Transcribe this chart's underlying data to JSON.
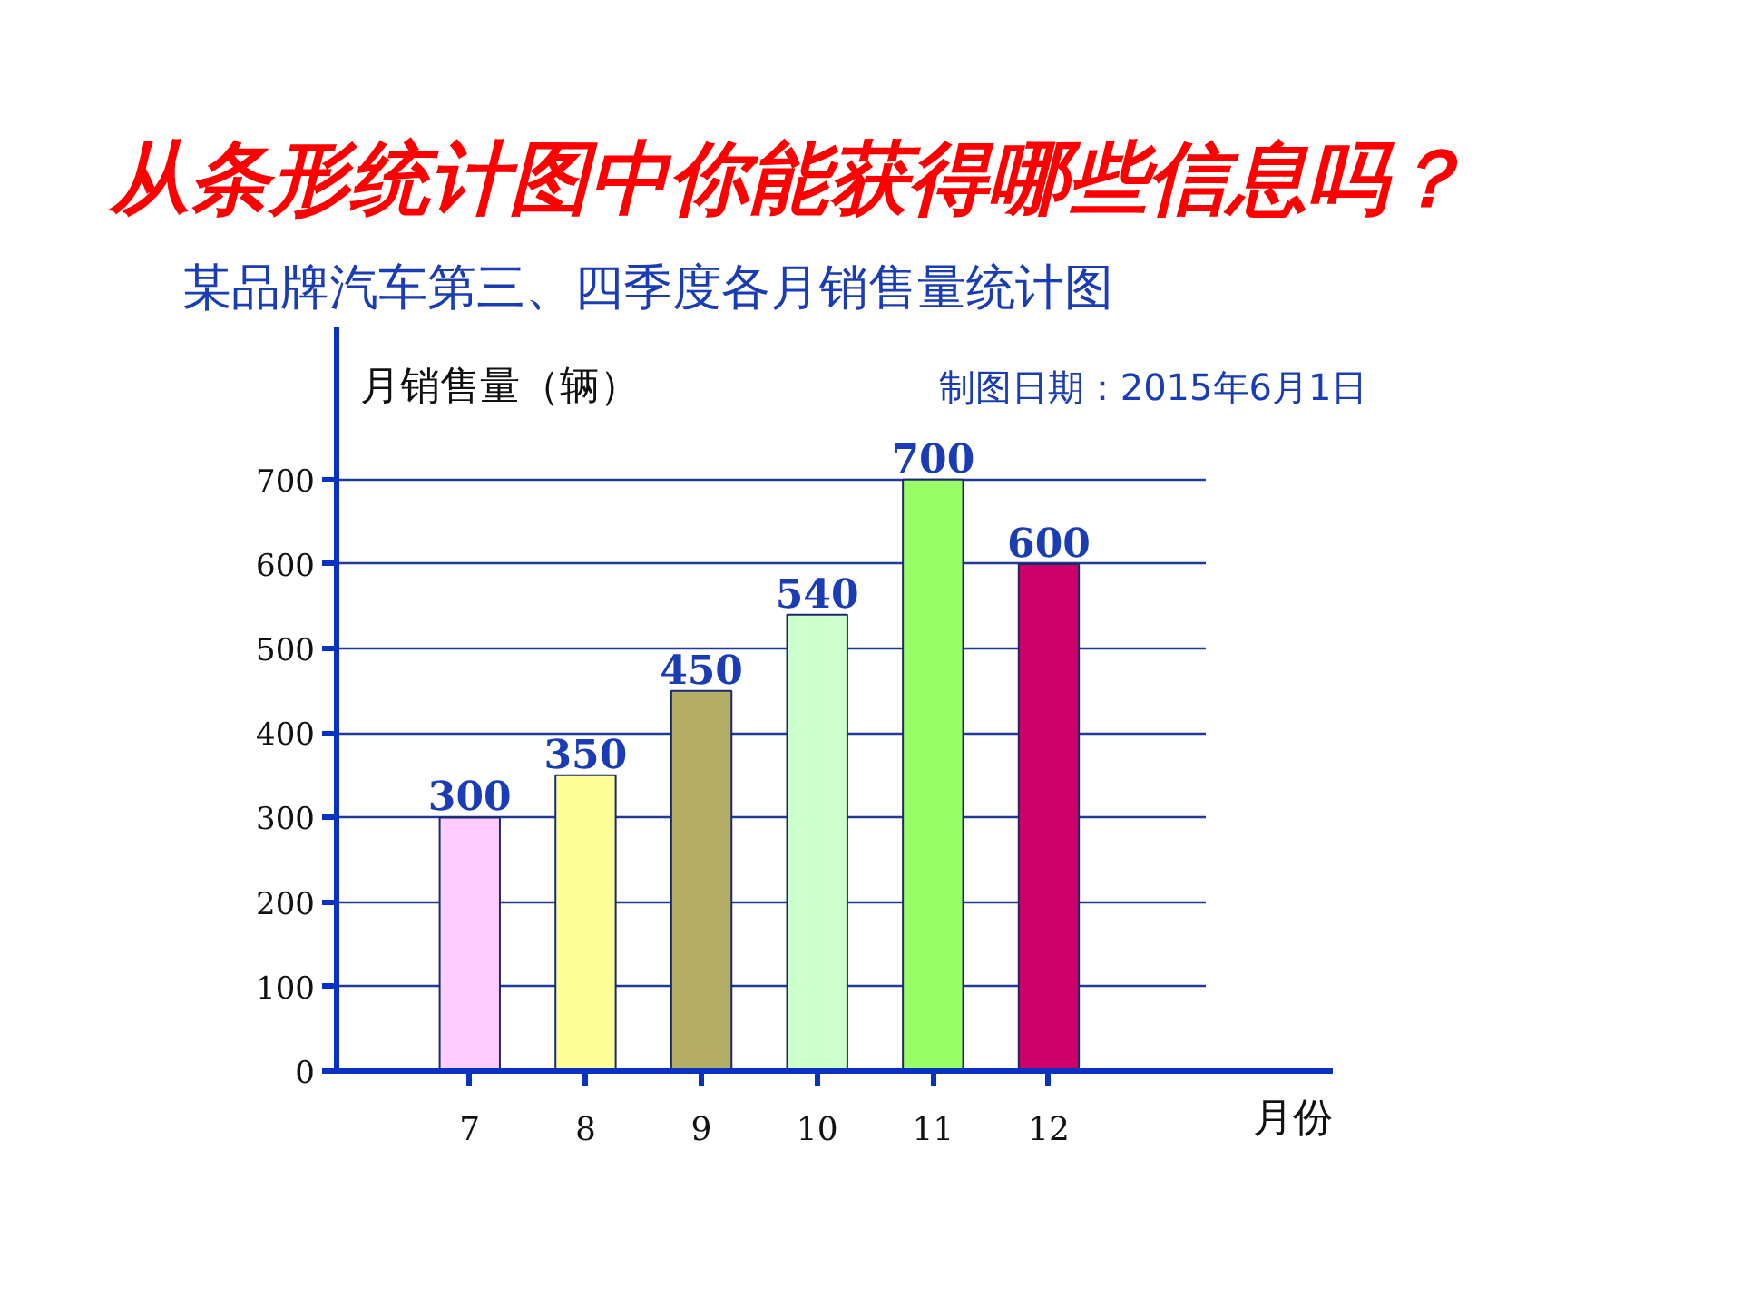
{
  "chart_data": {
    "type": "bar",
    "title": "从条形统计图中你能获得哪些信息吗？",
    "subtitle": "某品牌汽车第三、四季度各月销售量统计图",
    "xlabel": "月份",
    "ylabel": "月销售量（辆）",
    "annotations": [
      "制图日期：2015年6月1日"
    ],
    "categories": [
      "7",
      "8",
      "9",
      "10",
      "11",
      "12"
    ],
    "values": [
      300,
      350,
      450,
      540,
      700,
      600
    ],
    "colors": [
      "#ffccff",
      "#ffff99",
      "#b3ad66",
      "#ccffcc",
      "#99ff66",
      "#cc0066"
    ],
    "ylim": [
      0,
      880
    ],
    "yticks": [
      0,
      100,
      200,
      300,
      400,
      500,
      600,
      700
    ],
    "grid": "y",
    "data_labels": true
  }
}
